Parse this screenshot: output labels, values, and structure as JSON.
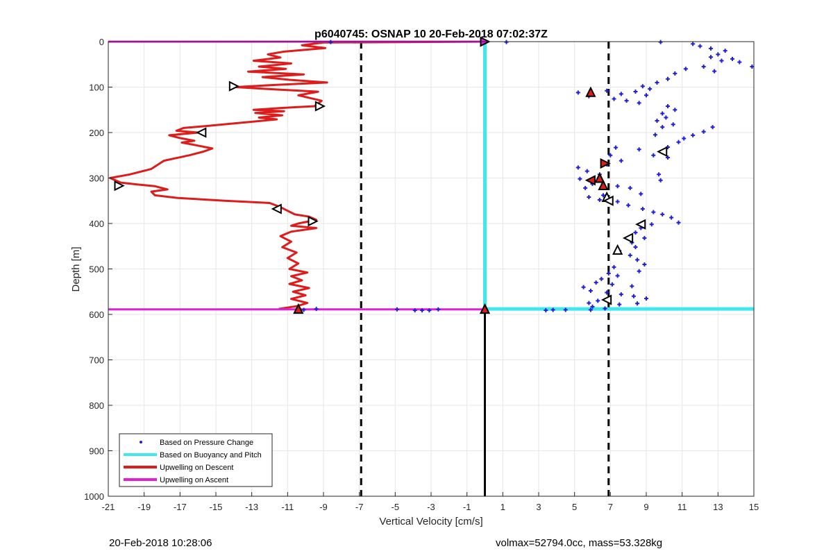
{
  "chart_data": {
    "type": "line",
    "title": "p6040745: OSNAP 10 20-Feb-2018 07:02:37Z",
    "xlabel": "Vertical Velocity [cm/s]",
    "ylabel": "Depth [m]",
    "xlim": [
      -21,
      15
    ],
    "ylim": [
      1000,
      0
    ],
    "y_reversed": true,
    "grid": true,
    "xticks": [
      -21,
      -19,
      -17,
      -15,
      -13,
      -11,
      -9,
      -7,
      -5,
      -3,
      -1,
      1,
      3,
      5,
      7,
      9,
      11,
      13,
      15
    ],
    "xtick_labels": [
      "-21",
      "-19",
      "-17",
      "-15",
      "-13",
      "-11",
      "-9",
      "-7",
      "-5",
      "-3",
      "-1",
      "1",
      "3",
      "5",
      "7",
      "9",
      "11",
      "13",
      "15"
    ],
    "yticks": [
      0,
      100,
      200,
      300,
      400,
      500,
      600,
      700,
      800,
      900,
      1000
    ],
    "ytick_labels": [
      "0",
      "100",
      "200",
      "300",
      "400",
      "500",
      "600",
      "700",
      "800",
      "900",
      "1000"
    ],
    "legend_position": "bottom-left",
    "legend": [
      {
        "label": "Based on Pressure Change",
        "color": "#1f1fd6",
        "style": "dot"
      },
      {
        "label": "Based on Buoyancy and Pitch",
        "color": "#3ee8ee",
        "style": "line"
      },
      {
        "label": "Upwelling on Descent",
        "color": "#dd1c1c",
        "style": "line"
      },
      {
        "label": "Upwelling on Ascent",
        "color": "#e21fd8",
        "style": "line"
      }
    ],
    "reference_lines": [
      {
        "x": -6.9,
        "style": "dashed",
        "color": "#000000"
      },
      {
        "x": 6.9,
        "style": "dashed",
        "color": "#000000"
      },
      {
        "x": 0,
        "y_range": [
          590,
          1000
        ],
        "style": "solid",
        "color": "#000000"
      }
    ],
    "series": [
      {
        "name": "Based on Pressure Change",
        "kind": "scatter",
        "color": "#1f1fd6",
        "points": [
          [
            -8.6,
            1
          ],
          [
            1.2,
            1
          ],
          [
            9.8,
            1
          ],
          [
            11.6,
            5
          ],
          [
            12.0,
            10
          ],
          [
            12.6,
            15
          ],
          [
            13.4,
            20
          ],
          [
            13.0,
            28
          ],
          [
            12.6,
            34
          ],
          [
            13.8,
            38
          ],
          [
            14.2,
            45
          ],
          [
            13.2,
            42
          ],
          [
            12.2,
            55
          ],
          [
            11.2,
            60
          ],
          [
            10.6,
            70
          ],
          [
            14.9,
            55
          ],
          [
            12.8,
            65
          ],
          [
            10.2,
            82
          ],
          [
            9.6,
            90
          ],
          [
            8.8,
            98
          ],
          [
            9.2,
            104
          ],
          [
            8.4,
            110
          ],
          [
            7.6,
            115
          ],
          [
            9.0,
            118
          ],
          [
            6.8,
            108
          ],
          [
            5.2,
            112
          ],
          [
            5.8,
            120
          ],
          [
            7.2,
            126
          ],
          [
            7.9,
            130
          ],
          [
            8.6,
            135
          ],
          [
            10.2,
            142
          ],
          [
            10.6,
            150
          ],
          [
            9.9,
            158
          ],
          [
            10.1,
            167
          ],
          [
            9.6,
            174
          ],
          [
            10.5,
            182
          ],
          [
            9.9,
            188
          ],
          [
            12.7,
            188
          ],
          [
            12.2,
            198
          ],
          [
            11.6,
            206
          ],
          [
            11.1,
            213
          ],
          [
            10.8,
            221
          ],
          [
            9.5,
            205
          ],
          [
            10.2,
            232
          ],
          [
            10.0,
            242
          ],
          [
            9.4,
            250
          ],
          [
            10.2,
            255
          ],
          [
            8.6,
            237
          ],
          [
            7.3,
            233
          ],
          [
            7.0,
            250
          ],
          [
            7.6,
            262
          ],
          [
            6.8,
            270
          ],
          [
            5.2,
            277
          ],
          [
            5.7,
            285
          ],
          [
            6.4,
            292
          ],
          [
            9.7,
            292
          ],
          [
            9.8,
            305
          ],
          [
            5.3,
            302
          ],
          [
            6.0,
            313
          ],
          [
            5.6,
            322
          ],
          [
            7.4,
            318
          ],
          [
            8.1,
            322
          ],
          [
            8.7,
            335
          ],
          [
            6.6,
            338
          ],
          [
            5.8,
            342
          ],
          [
            6.4,
            348
          ],
          [
            7.4,
            352
          ],
          [
            8.0,
            360
          ],
          [
            8.8,
            368
          ],
          [
            9.4,
            375
          ],
          [
            9.9,
            380
          ],
          [
            10.4,
            387
          ],
          [
            10.8,
            398
          ],
          [
            9.3,
            402
          ],
          [
            8.7,
            410
          ],
          [
            8.4,
            420
          ],
          [
            8.9,
            432
          ],
          [
            8.2,
            442
          ],
          [
            8.4,
            452
          ],
          [
            7.5,
            460
          ],
          [
            8.1,
            470
          ],
          [
            8.5,
            480
          ],
          [
            8.9,
            490
          ],
          [
            7.2,
            496
          ],
          [
            8.6,
            505
          ],
          [
            6.9,
            510
          ],
          [
            7.4,
            515
          ],
          [
            6.5,
            522
          ],
          [
            6.2,
            530
          ],
          [
            7.1,
            534
          ],
          [
            8.2,
            538
          ],
          [
            5.5,
            540
          ],
          [
            5.9,
            548
          ],
          [
            6.8,
            552
          ],
          [
            7.6,
            556
          ],
          [
            8.3,
            560
          ],
          [
            9.0,
            565
          ],
          [
            6.3,
            570
          ],
          [
            5.8,
            575
          ],
          [
            7.5,
            578
          ],
          [
            8.5,
            576
          ],
          [
            6.0,
            583
          ],
          [
            6.7,
            587
          ],
          [
            5.9,
            590
          ],
          [
            3.4,
            591
          ],
          [
            3.8,
            590
          ],
          [
            4.5,
            590
          ],
          [
            -4.9,
            589
          ],
          [
            -3.9,
            591
          ],
          [
            -3.5,
            591
          ],
          [
            -3.1,
            591
          ],
          [
            -2.6,
            589
          ],
          [
            -9.4,
            588
          ],
          [
            -10.1,
            590
          ]
        ]
      },
      {
        "name": "Based on Buoyancy and Pitch",
        "kind": "line",
        "color": "#3ee8ee",
        "points": [
          [
            0,
            0
          ],
          [
            0,
            588
          ],
          [
            15,
            588
          ]
        ]
      },
      {
        "name": "Upwelling on Descent",
        "kind": "line",
        "color": "#dd1c1c",
        "points": [
          [
            0,
            0
          ],
          [
            -9.0,
            2
          ],
          [
            -10.2,
            8
          ],
          [
            -8.9,
            14
          ],
          [
            -11.2,
            22
          ],
          [
            -12.1,
            28
          ],
          [
            -11.4,
            35
          ],
          [
            -12.9,
            42
          ],
          [
            -10.8,
            48
          ],
          [
            -12.6,
            55
          ],
          [
            -11.1,
            60
          ],
          [
            -13.2,
            66
          ],
          [
            -10.1,
            72
          ],
          [
            -12.4,
            78
          ],
          [
            -10.9,
            84
          ],
          [
            -8.8,
            90
          ],
          [
            -11.6,
            95
          ],
          [
            -13.9,
            100
          ],
          [
            -12.2,
            104
          ],
          [
            -9.3,
            110
          ],
          [
            -10.4,
            118
          ],
          [
            -9.1,
            130
          ],
          [
            -9.5,
            142
          ],
          [
            -11.4,
            146
          ],
          [
            -12.9,
            150
          ],
          [
            -11.2,
            153
          ],
          [
            -12.8,
            157
          ],
          [
            -11.3,
            162
          ],
          [
            -12.6,
            167
          ],
          [
            -11.6,
            171
          ],
          [
            -13.5,
            178
          ],
          [
            -15.6,
            186
          ],
          [
            -16.8,
            190
          ],
          [
            -17.2,
            196
          ],
          [
            -16.0,
            200
          ],
          [
            -17.6,
            206
          ],
          [
            -17.0,
            212
          ],
          [
            -16.2,
            218
          ],
          [
            -16.9,
            222
          ],
          [
            -16.1,
            228
          ],
          [
            -15.2,
            235
          ],
          [
            -15.7,
            242
          ],
          [
            -16.5,
            250
          ],
          [
            -17.9,
            262
          ],
          [
            -18.6,
            280
          ],
          [
            -19.8,
            292
          ],
          [
            -20.9,
            300
          ],
          [
            -20.3,
            310
          ],
          [
            -19.4,
            314
          ],
          [
            -18.4,
            318
          ],
          [
            -17.7,
            325
          ],
          [
            -18.6,
            330
          ],
          [
            -18.4,
            338
          ],
          [
            -17.1,
            344
          ],
          [
            -14.5,
            350
          ],
          [
            -12.0,
            355
          ],
          [
            -11.4,
            364
          ],
          [
            -11.1,
            370
          ],
          [
            -10.6,
            380
          ],
          [
            -9.8,
            385
          ],
          [
            -9.4,
            392
          ],
          [
            -10.4,
            400
          ],
          [
            -10.8,
            405
          ],
          [
            -9.4,
            410
          ],
          [
            -10.8,
            418
          ],
          [
            -11.4,
            428
          ],
          [
            -10.8,
            440
          ],
          [
            -11.3,
            452
          ],
          [
            -10.5,
            464
          ],
          [
            -11.0,
            476
          ],
          [
            -10.4,
            488
          ],
          [
            -10.9,
            500
          ],
          [
            -9.9,
            508
          ],
          [
            -10.8,
            516
          ],
          [
            -10.2,
            525
          ],
          [
            -10.9,
            533
          ],
          [
            -9.8,
            542
          ],
          [
            -10.7,
            550
          ],
          [
            -10.0,
            558
          ],
          [
            -10.8,
            566
          ],
          [
            -9.9,
            575
          ],
          [
            -10.5,
            582
          ],
          [
            -11.5,
            588
          ]
        ]
      },
      {
        "name": "Upwelling on Ascent",
        "kind": "line",
        "color": "#e21fd8",
        "points": [
          [
            -21,
            0
          ],
          [
            0,
            0
          ],
          [
            null,
            null
          ],
          [
            -21,
            589
          ],
          [
            0,
            589
          ]
        ]
      }
    ],
    "markers": [
      {
        "x": -14.0,
        "y": 98,
        "shape": "triangle-right",
        "fill": "#ffffff"
      },
      {
        "x": -9.2,
        "y": 142,
        "shape": "triangle-right",
        "fill": "#ffffff"
      },
      {
        "x": -15.8,
        "y": 200,
        "shape": "triangle-left",
        "fill": "#ffffff"
      },
      {
        "x": -20.4,
        "y": 317,
        "shape": "triangle-right",
        "fill": "#ffffff"
      },
      {
        "x": -11.6,
        "y": 368,
        "shape": "triangle-left",
        "fill": "#ffffff"
      },
      {
        "x": -9.6,
        "y": 395,
        "shape": "triangle-right",
        "fill": "#ffffff"
      },
      {
        "x": -10.4,
        "y": 588,
        "shape": "triangle-up",
        "fill": "#dd1c1c"
      },
      {
        "x": 0,
        "y": 0,
        "shape": "triangle-right",
        "fill": "#e21fd8"
      },
      {
        "x": 0,
        "y": 588,
        "shape": "triangle-up",
        "fill": "#dd1c1c"
      },
      {
        "x": 5.9,
        "y": 111,
        "shape": "triangle-up",
        "fill": "#dd1c1c"
      },
      {
        "x": 9.9,
        "y": 242,
        "shape": "triangle-left",
        "fill": "#ffffff"
      },
      {
        "x": 6.7,
        "y": 268,
        "shape": "triangle-right",
        "fill": "#dd1c1c"
      },
      {
        "x": 5.9,
        "y": 305,
        "shape": "triangle-left",
        "fill": "#dd1c1c"
      },
      {
        "x": 6.4,
        "y": 300,
        "shape": "triangle-up",
        "fill": "#dd1c1c"
      },
      {
        "x": 6.6,
        "y": 316,
        "shape": "triangle-up",
        "fill": "#dd1c1c"
      },
      {
        "x": 6.8,
        "y": 342,
        "shape": "triangle-up",
        "fill": "#ffffff"
      },
      {
        "x": 6.9,
        "y": 350,
        "shape": "triangle-left",
        "fill": "#ffffff"
      },
      {
        "x": 8.7,
        "y": 402,
        "shape": "triangle-left",
        "fill": "#ffffff"
      },
      {
        "x": 8.0,
        "y": 432,
        "shape": "triangle-left",
        "fill": "#ffffff"
      },
      {
        "x": 7.4,
        "y": 458,
        "shape": "triangle-up",
        "fill": "#ffffff"
      },
      {
        "x": 6.8,
        "y": 568,
        "shape": "triangle-left",
        "fill": "#ffffff"
      }
    ]
  },
  "footer": {
    "timestamp": "20-Feb-2018 10:28:06",
    "summary": "volmax=52794.0cc, mass=53.328kg"
  }
}
